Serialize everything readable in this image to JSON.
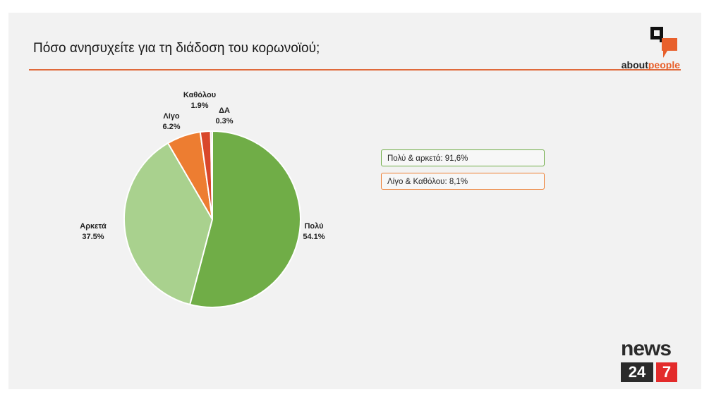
{
  "slide": {
    "title": "Πόσο ανησυχείτε για τη διάδοση του κορωνοϊού;"
  },
  "logos": {
    "aboutpeople_part1": "about",
    "aboutpeople_part2": "people",
    "news_word": "news",
    "news_num1": "24",
    "news_num2": "7"
  },
  "summary": {
    "positive": "Πολύ & αρκετά: 91,6%",
    "negative": "Λίγο & Καθόλου: 8,1%"
  },
  "colors": {
    "poly": "#70ad47",
    "arketa": "#a9d18e",
    "ligo": "#ed7d31",
    "katholou": "#d9472b",
    "da": "#a5a5a5",
    "accent": "#e06a3c"
  },
  "chart_data": {
    "type": "pie",
    "title": "Πόσο ανησυχείτε για τη διάδοση του κορωνοϊού;",
    "slices": [
      {
        "name": "Πολύ",
        "value": 54.1,
        "label": "54.1%",
        "color": "#70ad47"
      },
      {
        "name": "Αρκετά",
        "value": 37.5,
        "label": "37.5%",
        "color": "#a9d18e"
      },
      {
        "name": "Λίγο",
        "value": 6.2,
        "label": "6.2%",
        "color": "#ed7d31"
      },
      {
        "name": "Καθόλου",
        "value": 1.9,
        "label": "1.9%",
        "color": "#d9472b"
      },
      {
        "name": "ΔΑ",
        "value": 0.3,
        "label": "0.3%",
        "color": "#a5a5a5"
      }
    ],
    "legend": "none",
    "grid": false
  }
}
